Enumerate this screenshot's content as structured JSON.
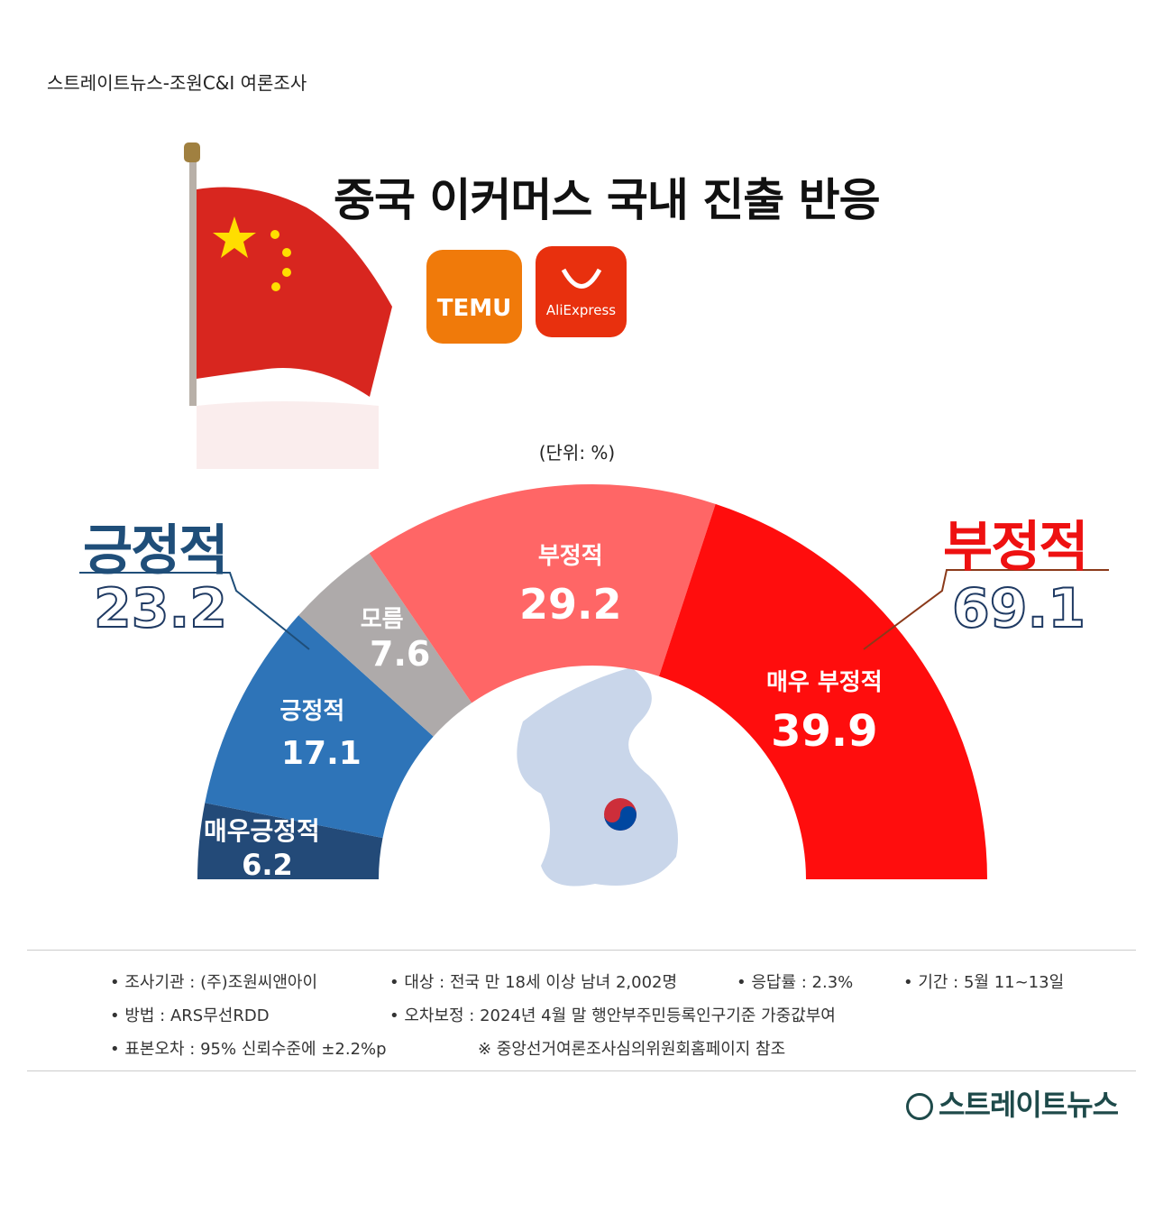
{
  "header": {
    "source": "스트레이트뉴스-조원C&I 여론조사",
    "title": "중국 이커머스 국내 진출 반응",
    "unit": "(단위: %)"
  },
  "logos": {
    "temu": "TEMU",
    "aliexpress": "AliExpress"
  },
  "summary": {
    "positive_label": "긍정적",
    "positive_value": "23.2",
    "negative_label": "부정적",
    "negative_value": "69.1",
    "positive_color": "#1f4e79",
    "negative_color": "#ee1111"
  },
  "chart_data": {
    "type": "pie",
    "shape": "semi-donut",
    "categories": [
      "매우긍정적",
      "긍정적",
      "모름",
      "부정적",
      "매우 부정적"
    ],
    "values": [
      6.2,
      17.1,
      7.6,
      29.2,
      39.9
    ],
    "value_labels": [
      "6.2",
      "17.1",
      "7.6",
      "29.2",
      "39.9"
    ],
    "colors": [
      "#234a78",
      "#2e74b8",
      "#aeaaaa",
      "#ff6666",
      "#ff0d0d"
    ],
    "unit": "%"
  },
  "footer": {
    "items": [
      "• 조사기관 : (주)조원씨앤아이",
      "• 대상 : 전국 만 18세 이상 남녀 2,002명",
      "• 응답률 : 2.3%",
      "• 기간 : 5월 11~13일",
      "• 방법 : ARS무선RDD",
      "• 오차보정 : 2024년 4월 말 행안부주민등록인구기준 가중값부여",
      "• 표본오차 : 95% 신뢰수준에 ±2.2%p",
      "※ 중앙선거여론조사심의위원회홈페이지 참조"
    ],
    "brand": "스트레이트뉴스"
  }
}
